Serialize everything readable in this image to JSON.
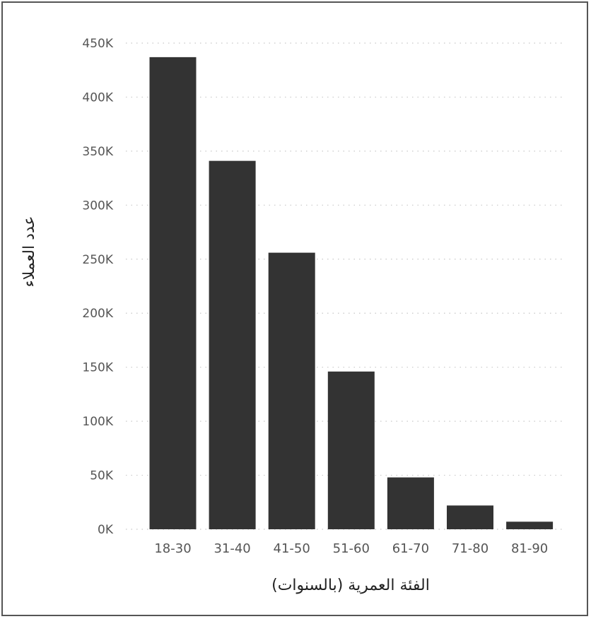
{
  "chart_data": {
    "type": "bar",
    "title": "",
    "xlabel": "الفئة العمرية (بالسنوات)",
    "ylabel": "عدد العملاء",
    "categories": [
      "18-30",
      "31-40",
      "41-50",
      "51-60",
      "61-70",
      "71-80",
      "81-90"
    ],
    "values": [
      437000,
      341000,
      256000,
      146000,
      48000,
      22000,
      7000
    ],
    "ylim": [
      0,
      450000
    ],
    "yticks": [
      0,
      50000,
      100000,
      150000,
      200000,
      250000,
      300000,
      350000,
      400000,
      450000
    ],
    "ytick_labels": [
      "0K",
      "50K",
      "100K",
      "150K",
      "200K",
      "250K",
      "300K",
      "350K",
      "400K",
      "450K"
    ],
    "grid": true,
    "bar_color": "#333333"
  }
}
